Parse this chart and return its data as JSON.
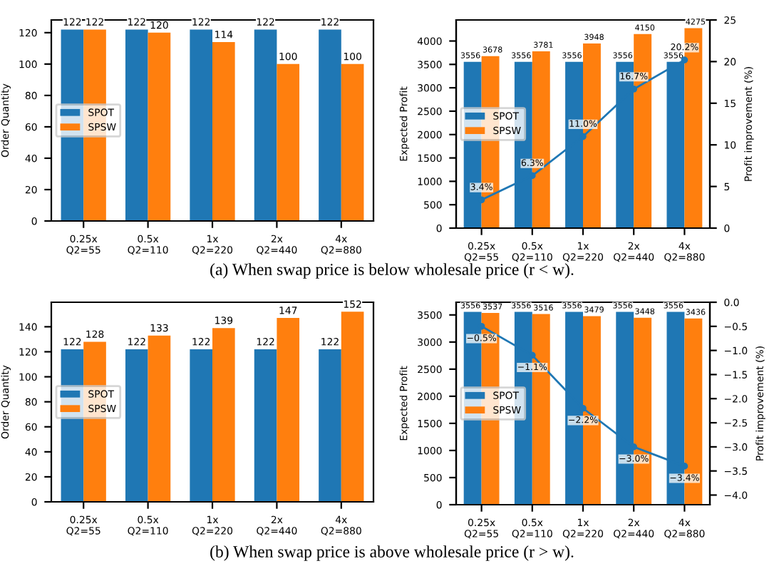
{
  "chart_data": [
    {
      "type": "bar",
      "ylabel": "Order Quantity",
      "categories": [
        "0.25x\nQ2=55",
        "0.5x\nQ2=110",
        "1x\nQ2=220",
        "2x\nQ2=440",
        "4x\nQ2=880"
      ],
      "ylim": [
        0,
        128.1
      ],
      "yticks": [
        0,
        20,
        40,
        60,
        80,
        100,
        120
      ],
      "data_labels": true,
      "legend": "left",
      "grid": false,
      "series": [
        {
          "name": "SPOT",
          "color": "#1f77b4",
          "values": [
            122,
            122,
            122,
            122,
            122
          ]
        },
        {
          "name": "SPSW",
          "color": "#ff7f0e",
          "values": [
            122,
            120,
            114,
            100,
            100
          ]
        }
      ],
      "annotations": [
        "(a) When swap price is below wholesale price (r < w)."
      ]
    },
    {
      "type": "bar",
      "ylabel": "Expected Profit",
      "y2label": "Profit improvement (%)",
      "categories": [
        "0.25x\nQ2=55",
        "0.5x\nQ2=110",
        "1x\nQ2=220",
        "2x\nQ2=440",
        "4x\nQ2=880"
      ],
      "ylim": [
        0,
        4450
      ],
      "yticks": [
        0,
        500,
        1000,
        1500,
        2000,
        2500,
        3000,
        3500,
        4000
      ],
      "y2lim": [
        0,
        25
      ],
      "y2ticks": [
        0,
        5,
        10,
        15,
        20,
        25
      ],
      "data_labels": true,
      "legend": "left",
      "grid": false,
      "marker": "circle",
      "series": [
        {
          "name": "SPOT",
          "color": "#1f77b4",
          "values": [
            3556,
            3556,
            3556,
            3556,
            3556
          ]
        },
        {
          "name": "SPSW",
          "color": "#ff7f0e",
          "values": [
            3678,
            3781,
            3948,
            4150,
            4275
          ]
        },
        {
          "type": "line",
          "axis": "y2",
          "color": "#1f77b4",
          "values": [
            3.4,
            6.3,
            11.0,
            16.7,
            20.2
          ],
          "value_labels": [
            "3.4%",
            "6.3%",
            "11.0%",
            "16.7%",
            "20.2%"
          ]
        }
      ]
    },
    {
      "type": "bar",
      "ylabel": "Order Quantity",
      "categories": [
        "0.25x\nQ2=55",
        "0.5x\nQ2=110",
        "1x\nQ2=220",
        "2x\nQ2=440",
        "4x\nQ2=880"
      ],
      "ylim": [
        0,
        159.6
      ],
      "yticks": [
        0,
        20,
        40,
        60,
        80,
        100,
        120,
        140
      ],
      "data_labels": true,
      "legend": "left",
      "grid": false,
      "series": [
        {
          "name": "SPOT",
          "color": "#1f77b4",
          "values": [
            122,
            122,
            122,
            122,
            122
          ]
        },
        {
          "name": "SPSW",
          "color": "#ff7f0e",
          "values": [
            128,
            133,
            139,
            147,
            152
          ]
        }
      ],
      "annotations": [
        "(b) When swap price is above wholesale price (r > w)."
      ]
    },
    {
      "type": "bar",
      "ylabel": "Expected Profit",
      "y2label": "Profit improvement (%)",
      "categories": [
        "0.25x\nQ2=55",
        "0.5x\nQ2=110",
        "1x\nQ2=220",
        "2x\nQ2=440",
        "4x\nQ2=880"
      ],
      "ylim": [
        0,
        3733.8
      ],
      "yticks": [
        0,
        500,
        1000,
        1500,
        2000,
        2500,
        3000,
        3500
      ],
      "y2lim": [
        -4.2,
        0
      ],
      "y2ticks": [
        {
          "value": -4.0,
          "label": "−4.0"
        },
        {
          "value": -3.5,
          "label": "−3.5"
        },
        {
          "value": -3.0,
          "label": "−3.0"
        },
        {
          "value": -2.5,
          "label": "−2.5"
        },
        {
          "value": -2.0,
          "label": "−2.0"
        },
        {
          "value": -1.5,
          "label": "−1.5"
        },
        {
          "value": -1.0,
          "label": "−1.0"
        },
        {
          "value": -0.5,
          "label": "−0.5"
        },
        {
          "value": 0,
          "label": "0.0"
        }
      ],
      "data_labels": true,
      "legend": "left",
      "grid": false,
      "marker": "circle",
      "series": [
        {
          "name": "SPOT",
          "color": "#1f77b4",
          "values": [
            3556,
            3556,
            3556,
            3556,
            3556
          ]
        },
        {
          "name": "SPSW",
          "color": "#ff7f0e",
          "values": [
            3537,
            3516,
            3479,
            3448,
            3436
          ]
        },
        {
          "type": "line",
          "axis": "y2",
          "color": "#1f77b4",
          "values": [
            -0.5,
            -1.1,
            -2.2,
            -3.0,
            -3.4
          ],
          "value_labels": [
            "−0.5%",
            "−1.1%",
            "−2.2%",
            "−3.0%",
            "−3.4%"
          ]
        }
      ]
    }
  ]
}
